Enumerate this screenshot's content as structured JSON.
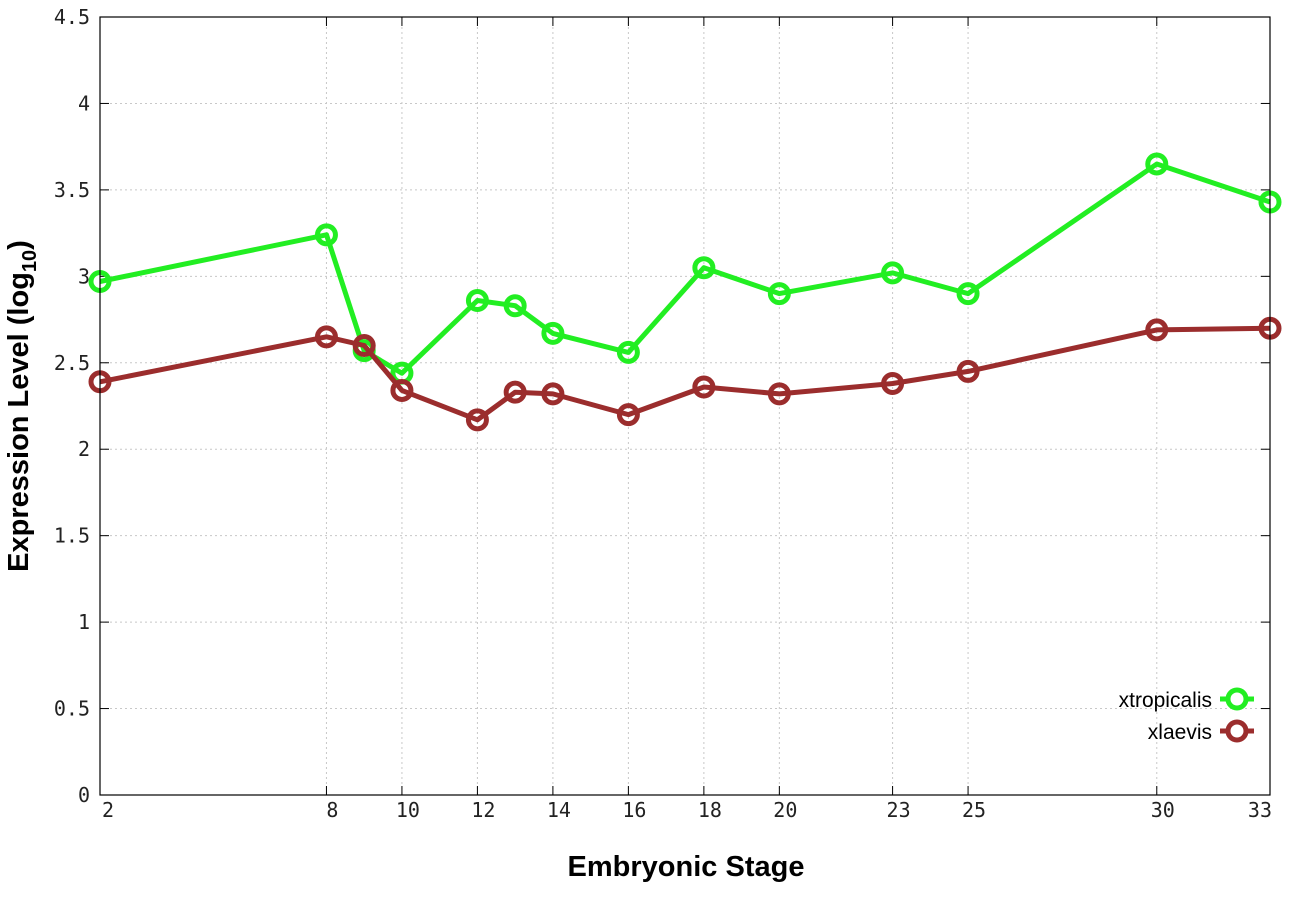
{
  "chart_data": {
    "type": "line",
    "xlabel": "Embryonic Stage",
    "ylabel": "Expression Level (log",
    "ylabel_sub": "10",
    "ylabel_end": ")",
    "x_ticks": [
      2,
      8,
      10,
      12,
      14,
      16,
      18,
      20,
      23,
      25,
      30,
      33
    ],
    "x_tick_labels": [
      "2",
      "8",
      "10",
      "12",
      "14",
      "16",
      "18",
      "20",
      "23",
      "25",
      "30",
      "33"
    ],
    "y_ticks": [
      0,
      0.5,
      1,
      1.5,
      2,
      2.5,
      3,
      3.5,
      4,
      4.5
    ],
    "y_tick_labels": [
      "0",
      "0.5",
      "1",
      "1.5",
      "2",
      "2.5",
      "3",
      "3.5",
      "4",
      "4.5"
    ],
    "xlim": [
      2,
      33
    ],
    "ylim": [
      0,
      4.5
    ],
    "grid": true,
    "legend_position": "bottom-right",
    "x": [
      2,
      8,
      9,
      10,
      12,
      13,
      14,
      16,
      18,
      20,
      23,
      25,
      30,
      33
    ],
    "series": [
      {
        "name": "xtropicalis",
        "color": "#22ee22",
        "values": [
          2.97,
          3.24,
          2.57,
          2.44,
          2.86,
          2.83,
          2.67,
          2.56,
          3.05,
          2.9,
          3.02,
          2.9,
          3.65,
          3.43
        ]
      },
      {
        "name": "xlaevis",
        "color": "#9b2d2d",
        "values": [
          2.39,
          2.65,
          2.6,
          2.34,
          2.17,
          2.33,
          2.32,
          2.2,
          2.36,
          2.32,
          2.38,
          2.45,
          2.69,
          2.7
        ]
      }
    ]
  }
}
